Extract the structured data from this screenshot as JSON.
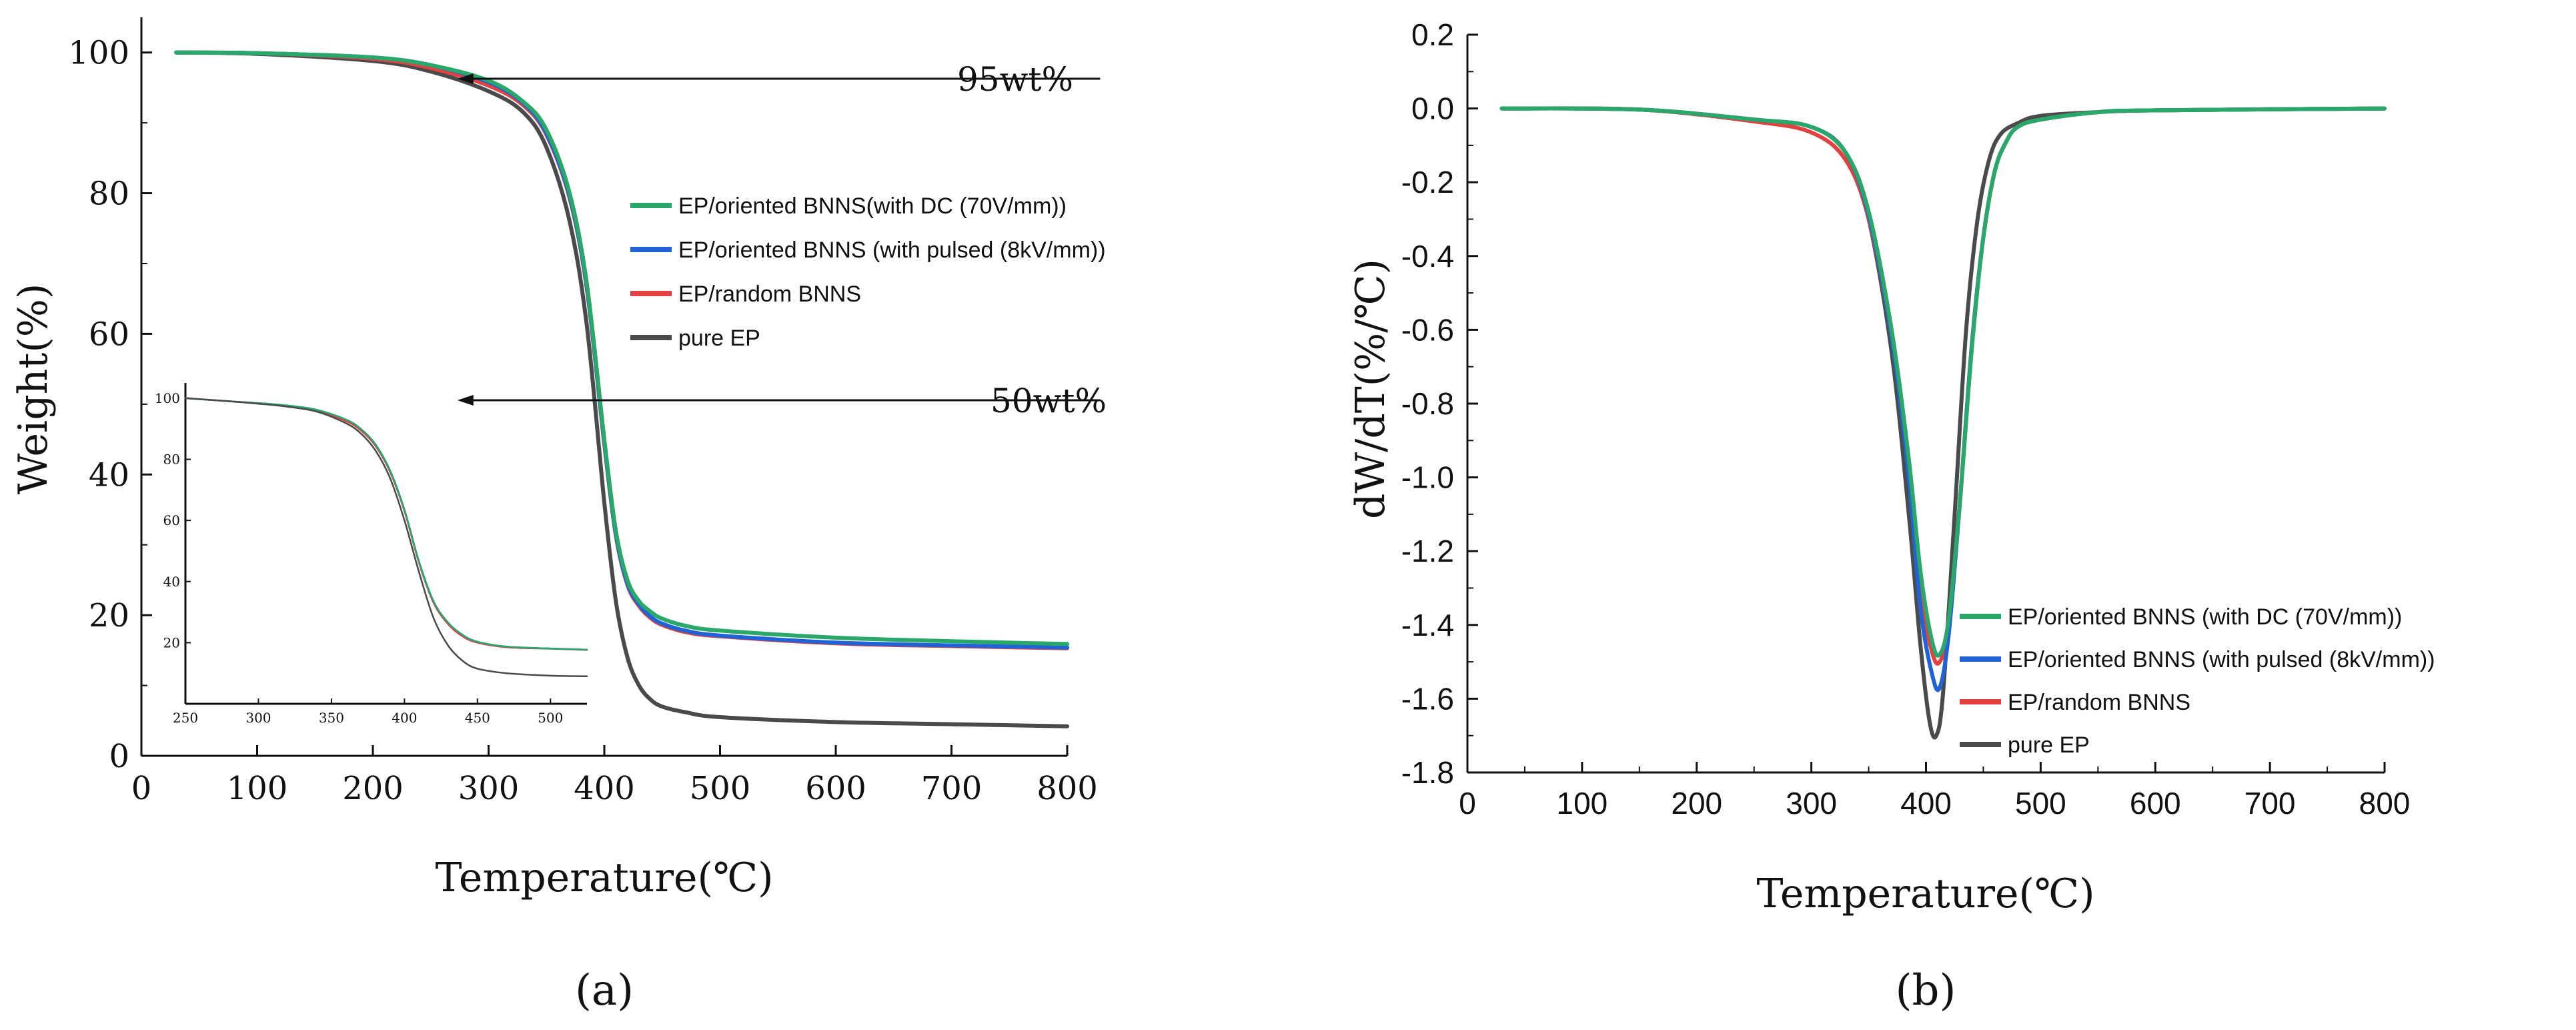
{
  "chart_data": [
    {
      "id": "a",
      "type": "line",
      "panel_label": "(a)",
      "xlabel": "Temperature(℃)",
      "ylabel": "Weight(%)",
      "xlim": [
        0,
        800
      ],
      "ylim": [
        0,
        105
      ],
      "xticks": [
        0,
        100,
        200,
        300,
        400,
        500,
        600,
        700,
        800
      ],
      "yticks": [
        0,
        20,
        40,
        60,
        80,
        100
      ],
      "legend_position": "right-middle",
      "series": [
        {
          "name": "EP/oriented BNNS(with DC (70V/mm))",
          "color": "#2aa86a",
          "x": [
            30,
            100,
            200,
            250,
            300,
            330,
            350,
            370,
            385,
            400,
            410,
            420,
            430,
            440,
            450,
            470,
            500,
            600,
            700,
            800
          ],
          "y": [
            100,
            99.9,
            99.3,
            98.2,
            96,
            93,
            89,
            80,
            67,
            45,
            32,
            25,
            22,
            20.5,
            19.5,
            18.5,
            17.8,
            16.8,
            16.3,
            15.9
          ]
        },
        {
          "name": "EP/oriented BNNS (with pulsed (8kV/mm))",
          "color": "#1f63d6",
          "x": [
            30,
            100,
            200,
            250,
            300,
            330,
            350,
            370,
            385,
            400,
            410,
            420,
            430,
            440,
            450,
            470,
            500,
            600,
            700,
            800
          ],
          "y": [
            100,
            99.9,
            99.3,
            98.2,
            95.8,
            92.8,
            88.5,
            79.5,
            66.5,
            44.5,
            31.5,
            24.5,
            21.5,
            19.8,
            18.8,
            17.8,
            17.1,
            16.1,
            15.7,
            15.4
          ]
        },
        {
          "name": "EP/random BNNS",
          "color": "#e34040",
          "x": [
            30,
            100,
            200,
            250,
            300,
            330,
            350,
            370,
            385,
            400,
            410,
            420,
            430,
            440,
            450,
            470,
            500,
            600,
            700,
            800
          ],
          "y": [
            100,
            99.9,
            99.1,
            97.8,
            95.3,
            92.5,
            88.3,
            79.3,
            66.3,
            44.3,
            31.3,
            24.3,
            21.3,
            19.6,
            18.6,
            17.6,
            17,
            16,
            15.6,
            15.3
          ]
        },
        {
          "name": "pure EP",
          "color": "#4a4a4a",
          "x": [
            30,
            100,
            200,
            250,
            300,
            330,
            350,
            370,
            385,
            400,
            410,
            420,
            430,
            440,
            450,
            470,
            500,
            600,
            700,
            800
          ],
          "y": [
            100,
            99.8,
            98.8,
            97.3,
            94.5,
            91.5,
            86.5,
            76,
            61,
            36,
            22,
            14,
            10,
            8,
            7,
            6.2,
            5.5,
            4.8,
            4.5,
            4.2
          ]
        }
      ],
      "annotations": [
        {
          "text": "95wt%",
          "value": 95,
          "arrow_from_x": 425,
          "arrow_to_x": 250
        },
        {
          "text": "50wt%",
          "value": 50,
          "arrow_from_x": 425,
          "arrow_to_x": 250
        }
      ],
      "inset": {
        "xlim": [
          250,
          525
        ],
        "ylim": [
          0,
          105
        ],
        "xticks": [
          250,
          300,
          350,
          400,
          450,
          500
        ],
        "yticks": [
          20,
          40,
          60,
          80,
          100
        ],
        "series": [
          {
            "name": "EP/random BNNS",
            "color": "#e34040",
            "x": [
              250,
              280,
              300,
              320,
              340,
              360,
              370,
              380,
              390,
              400,
              410,
              420,
              430,
              440,
              450,
              470,
              500,
              525
            ],
            "y": [
              100,
              99,
              98.3,
              97.4,
              95.9,
              92.5,
              89.5,
              84.5,
              76,
              63,
              46,
              33,
              26,
              22,
              20,
              18.5,
              18,
              17.6
            ]
          },
          {
            "name": "EP/oriented BNNS (with pulsed (8kV/mm))",
            "color": "#1f63d6",
            "x": [
              250,
              280,
              300,
              320,
              340,
              360,
              370,
              380,
              390,
              400,
              410,
              420,
              430,
              440,
              450,
              470,
              500,
              525
            ],
            "y": [
              100,
              99,
              98.4,
              97.6,
              96.2,
              93,
              90,
              85,
              76.5,
              63.5,
              46.5,
              33.5,
              26.5,
              22.5,
              20.3,
              18.7,
              18.1,
              17.7
            ]
          },
          {
            "name": "EP/oriented BNNS(with DC (70V/mm))",
            "color": "#2aa86a",
            "x": [
              250,
              280,
              300,
              320,
              340,
              360,
              370,
              380,
              390,
              400,
              410,
              420,
              430,
              440,
              450,
              470,
              500,
              525
            ],
            "y": [
              100,
              99,
              98.4,
              97.6,
              96.2,
              93,
              90,
              85,
              76.5,
              63.5,
              46.5,
              33.5,
              26.5,
              22.5,
              20.3,
              18.7,
              18.1,
              17.7
            ]
          },
          {
            "name": "pure EP",
            "color": "#4a4a4a",
            "x": [
              250,
              280,
              300,
              320,
              340,
              360,
              370,
              380,
              390,
              400,
              410,
              420,
              430,
              440,
              450,
              470,
              500,
              525
            ],
            "y": [
              100,
              99,
              98.2,
              97.2,
              95.6,
              91.8,
              88.5,
              83,
              74,
              60,
              43,
              28,
              19,
              14,
              11.5,
              10,
              9.2,
              9
            ]
          }
        ]
      }
    },
    {
      "id": "b",
      "type": "line",
      "panel_label": "(b)",
      "xlabel": "Temperature(℃)",
      "ylabel": "dW/dT(%/℃)",
      "xlim": [
        0,
        800
      ],
      "ylim": [
        -1.8,
        0.2
      ],
      "xticks": [
        0,
        100,
        200,
        300,
        400,
        500,
        600,
        700,
        800
      ],
      "yticks": [
        0.2,
        0.0,
        -0.2,
        -0.4,
        -0.6,
        -0.8,
        -1.0,
        -1.2,
        -1.4,
        -1.6,
        -1.8
      ],
      "ytick_labels": [
        "0.2",
        "0.0",
        "-0.2",
        "-0.4",
        "-0.6",
        "-0.8",
        "-1.0",
        "-1.2",
        "-1.4",
        "-1.6",
        "-1.8"
      ],
      "legend_position": "bottom-right",
      "series": [
        {
          "name": "EP/oriented BNNS (with DC (70V/mm))",
          "color": "#2aa86a",
          "x": [
            30,
            150,
            250,
            300,
            330,
            350,
            370,
            385,
            395,
            405,
            412,
            420,
            430,
            440,
            450,
            460,
            470,
            480,
            500,
            550,
            600,
            800
          ],
          "y": [
            0,
            -0.003,
            -0.03,
            -0.05,
            -0.12,
            -0.28,
            -0.6,
            -0.95,
            -1.25,
            -1.44,
            -1.48,
            -1.38,
            -1.05,
            -0.65,
            -0.35,
            -0.17,
            -0.09,
            -0.05,
            -0.03,
            -0.01,
            -0.005,
            0
          ]
        },
        {
          "name": "EP/oriented BNNS (with pulsed (8kV/mm))",
          "color": "#1f63d6",
          "x": [
            30,
            150,
            250,
            300,
            330,
            350,
            370,
            385,
            395,
            405,
            412,
            420,
            430,
            440,
            450,
            460,
            470,
            480,
            500,
            550,
            600,
            800
          ],
          "y": [
            0,
            -0.003,
            -0.03,
            -0.05,
            -0.12,
            -0.29,
            -0.62,
            -1.0,
            -1.35,
            -1.53,
            -1.57,
            -1.42,
            -1.05,
            -0.64,
            -0.35,
            -0.17,
            -0.09,
            -0.05,
            -0.03,
            -0.01,
            -0.005,
            0
          ]
        },
        {
          "name": "EP/random BNNS",
          "color": "#e34040",
          "x": [
            30,
            150,
            250,
            300,
            330,
            350,
            370,
            385,
            395,
            405,
            412,
            420,
            430,
            440,
            450,
            460,
            470,
            480,
            500,
            550,
            600,
            800
          ],
          "y": [
            0,
            -0.003,
            -0.035,
            -0.065,
            -0.14,
            -0.3,
            -0.62,
            -0.98,
            -1.3,
            -1.47,
            -1.5,
            -1.4,
            -1.05,
            -0.64,
            -0.35,
            -0.17,
            -0.09,
            -0.05,
            -0.03,
            -0.01,
            -0.005,
            0
          ]
        },
        {
          "name": "pure EP",
          "color": "#4a4a4a",
          "x": [
            30,
            150,
            250,
            300,
            330,
            350,
            370,
            385,
            395,
            403,
            409,
            415,
            425,
            435,
            445,
            455,
            465,
            480,
            500,
            550,
            600,
            800
          ],
          "y": [
            0,
            -0.003,
            -0.03,
            -0.05,
            -0.12,
            -0.3,
            -0.66,
            -1.1,
            -1.45,
            -1.66,
            -1.7,
            -1.58,
            -1.1,
            -0.6,
            -0.3,
            -0.14,
            -0.07,
            -0.04,
            -0.02,
            -0.01,
            -0.005,
            0
          ]
        }
      ]
    }
  ]
}
